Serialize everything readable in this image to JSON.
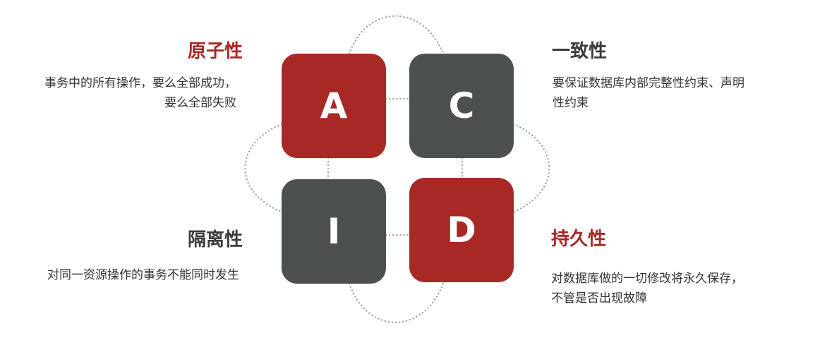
{
  "colors": {
    "accent_red": "#a82826",
    "dark_gray": "#4c5150",
    "text": "#333333",
    "connector": "#9a9a9a"
  },
  "tiles": {
    "a": {
      "letter": "A"
    },
    "c": {
      "letter": "C"
    },
    "i": {
      "letter": "I"
    },
    "d": {
      "letter": "D"
    }
  },
  "atomicity": {
    "title": "原子性",
    "lines": [
      "事务中的所有操作，要么全部成功，",
      "要么全部失败"
    ]
  },
  "consistency": {
    "title": "一致性",
    "lines": [
      "要保证数据库内部完整性约束、声明",
      "性约束"
    ]
  },
  "isolation": {
    "title": "隔离性",
    "lines": [
      "对同一资源操作的事务不能同时发生"
    ]
  },
  "durability": {
    "title": "持久性",
    "lines": [
      "对数据库做的一切修改将永久保存，",
      "不管是否出现故障"
    ]
  }
}
